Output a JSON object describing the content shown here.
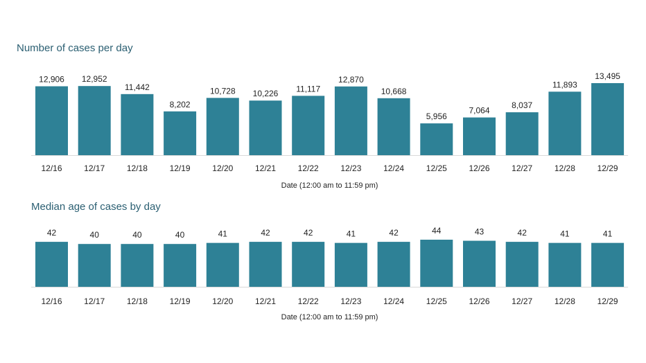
{
  "colors": {
    "bar": "#2e8196",
    "title": "#2b5f72",
    "axis": "#d9d9d9"
  },
  "chart_data": [
    {
      "type": "bar",
      "title": "Number of cases per day",
      "xlabel": "Date (12:00 am to 11:59 pm)",
      "categories": [
        "12/16",
        "12/17",
        "12/18",
        "12/19",
        "12/20",
        "12/21",
        "12/22",
        "12/23",
        "12/24",
        "12/25",
        "12/26",
        "12/27",
        "12/28",
        "12/29"
      ],
      "values": [
        12906,
        12952,
        11442,
        8202,
        10728,
        10226,
        11117,
        12870,
        10668,
        5956,
        7064,
        8037,
        11893,
        13495
      ],
      "value_labels": [
        "12,906",
        "12,952",
        "11,442",
        "8,202",
        "10,728",
        "10,226",
        "11,117",
        "12,870",
        "10,668",
        "5,956",
        "7,064",
        "8,037",
        "11,893",
        "13,495"
      ],
      "ylim": [
        0,
        13495
      ],
      "grid": false
    },
    {
      "type": "bar",
      "title": "Median age of cases by day",
      "xlabel": "Date (12:00 am to 11:59 pm)",
      "categories": [
        "12/16",
        "12/17",
        "12/18",
        "12/19",
        "12/20",
        "12/21",
        "12/22",
        "12/23",
        "12/24",
        "12/25",
        "12/26",
        "12/27",
        "12/28",
        "12/29"
      ],
      "values": [
        42,
        40,
        40,
        40,
        41,
        42,
        42,
        41,
        42,
        44,
        43,
        42,
        41,
        41
      ],
      "value_labels": [
        "42",
        "40",
        "40",
        "40",
        "41",
        "42",
        "42",
        "41",
        "42",
        "44",
        "43",
        "42",
        "41",
        "41"
      ],
      "ylim": [
        0,
        44
      ],
      "grid": false
    }
  ]
}
